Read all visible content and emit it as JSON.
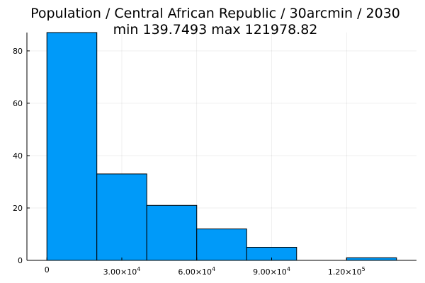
{
  "chart_data": {
    "type": "bar",
    "title": "Population / Central African Republic / 30arcmin / 2030",
    "subtitle": "min 139.7493  max 121978.82",
    "xlabel": "",
    "ylabel": "",
    "bin_edges": [
      0,
      20000,
      40000,
      60000,
      80000,
      100000,
      120000,
      140000
    ],
    "values": [
      87,
      33,
      21,
      12,
      5,
      0,
      1
    ],
    "xlim": [
      -8000,
      148000
    ],
    "ylim": [
      0,
      87
    ],
    "x_ticks": [
      {
        "value": 0,
        "label": "0",
        "sup": ""
      },
      {
        "value": 30000,
        "label": "3.00×10",
        "sup": "4"
      },
      {
        "value": 60000,
        "label": "6.00×10",
        "sup": "4"
      },
      {
        "value": 90000,
        "label": "9.00×10",
        "sup": "4"
      },
      {
        "value": 120000,
        "label": "1.20×10",
        "sup": "5"
      }
    ],
    "y_ticks": [
      0,
      20,
      40,
      60,
      80
    ],
    "grid": true,
    "legend": "none",
    "bar_color": "#009AF9",
    "edge_color": "#000000"
  }
}
